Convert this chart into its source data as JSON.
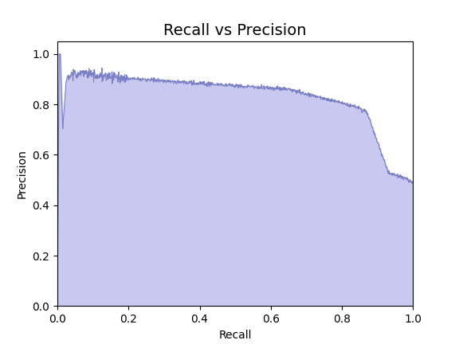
{
  "title": "Recall vs Precision",
  "xlabel": "Recall",
  "ylabel": "Precision",
  "xlim": [
    0.0,
    1.0
  ],
  "ylim": [
    0.0,
    1.05
  ],
  "line_color": "#7b7fc4",
  "fill_color": "#c8c8f0",
  "fill_alpha": 1.0,
  "xticks": [
    0.0,
    0.2,
    0.4,
    0.6,
    0.8,
    1.0
  ],
  "yticks": [
    0.0,
    0.2,
    0.4,
    0.6,
    0.8,
    1.0
  ],
  "title_fontsize": 14,
  "label_fontsize": 10
}
